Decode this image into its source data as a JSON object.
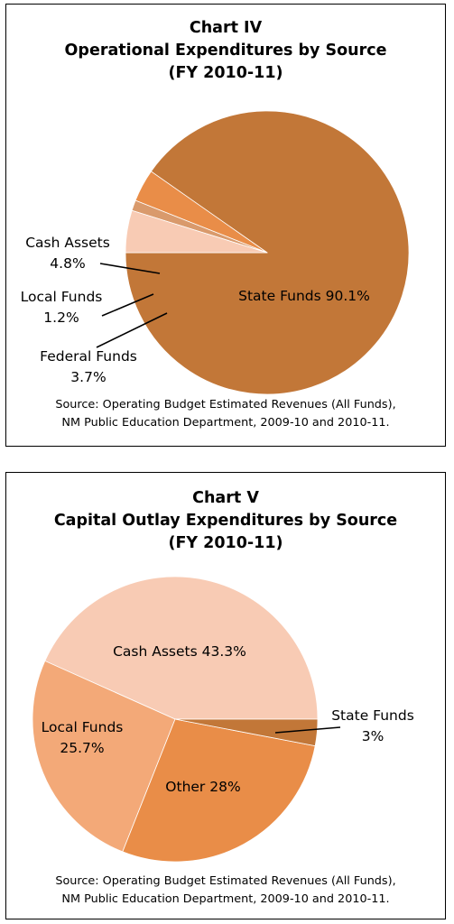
{
  "chart_data": [
    {
      "type": "pie",
      "title_lines": [
        "Chart IV",
        "Operational Expenditures by Source",
        "(FY 2010-11)"
      ],
      "slices": [
        {
          "name": "State Funds",
          "value": 90.1,
          "label_lines": [
            "State Funds 90.1%"
          ],
          "color": "#c27738"
        },
        {
          "name": "Federal Funds",
          "value": 3.7,
          "label_lines": [
            "Federal Funds",
            "3.7%"
          ],
          "color": "#e98d48"
        },
        {
          "name": "Local Funds",
          "value": 1.2,
          "label_lines": [
            "Local Funds",
            "1.2%"
          ],
          "color": "#d99a6c"
        },
        {
          "name": "Cash Assets",
          "value": 4.8,
          "label_lines": [
            "Cash Assets",
            "4.8%"
          ],
          "color": "#f8cbb4"
        }
      ],
      "source_lines": [
        "Source: Operating Budget Estimated Revenues (All Funds),",
        "NM Public Education Department, 2009-10 and 2010-11."
      ]
    },
    {
      "type": "pie",
      "title_lines": [
        "Chart V",
        "Capital Outlay Expenditures by Source",
        "(FY 2010-11)"
      ],
      "slices": [
        {
          "name": "Cash Assets",
          "value": 43.3,
          "label_lines": [
            "Cash Assets 43.3%"
          ],
          "color": "#f8cbb4"
        },
        {
          "name": "Local Funds",
          "value": 25.7,
          "label_lines": [
            "Local Funds",
            "25.7%"
          ],
          "color": "#f3a978"
        },
        {
          "name": "Other",
          "value": 28,
          "label_lines": [
            "Other 28%"
          ],
          "color": "#e98d48"
        },
        {
          "name": "State Funds",
          "value": 3,
          "label_lines": [
            "State Funds",
            "3%"
          ],
          "color": "#c27738"
        }
      ],
      "source_lines": [
        "Source: Operating Budget Estimated Revenues (All Funds),",
        "NM Public Education Department, 2009-10 and 2010-11."
      ]
    }
  ]
}
